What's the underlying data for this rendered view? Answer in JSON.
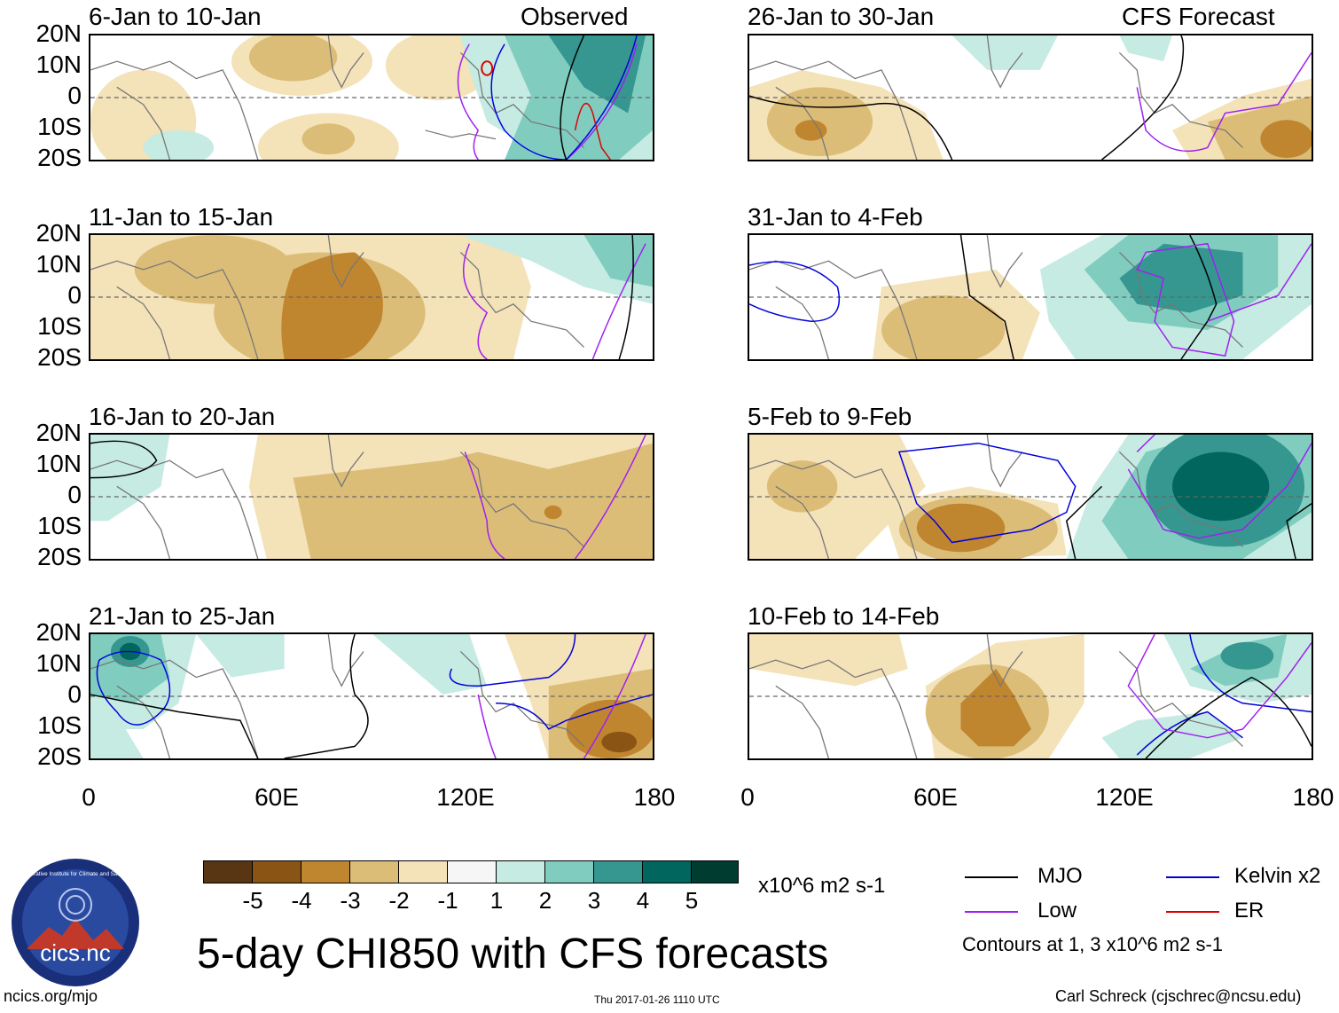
{
  "panels": [
    {
      "period": "6-Jan to 10-Jan",
      "source": "Observed"
    },
    {
      "period": "11-Jan to 15-Jan",
      "source": ""
    },
    {
      "period": "16-Jan to 20-Jan",
      "source": ""
    },
    {
      "period": "21-Jan to 25-Jan",
      "source": ""
    },
    {
      "period": "26-Jan to 30-Jan",
      "source": "CFS Forecast"
    },
    {
      "period": "31-Jan to 4-Feb",
      "source": ""
    },
    {
      "period": "5-Feb to 9-Feb",
      "source": ""
    },
    {
      "period": "10-Feb to 14-Feb",
      "source": ""
    }
  ],
  "lat_labels": [
    "20N",
    "10N",
    "0",
    "10S",
    "20S"
  ],
  "lon_labels": [
    "0",
    "60E",
    "120E",
    "180"
  ],
  "colorbar": {
    "colors": [
      "#583613",
      "#8a5415",
      "#c0852f",
      "#dcbd78",
      "#f4e2b8",
      "#f6f6f6",
      "#c6ebe3",
      "#80cdc0",
      "#35978f",
      "#01665e",
      "#003c30"
    ],
    "labels": [
      "-5",
      "-4",
      "-3",
      "-2",
      "-1",
      "1",
      "2",
      "3",
      "4",
      "5"
    ],
    "units": "x10^6 m2 s-1"
  },
  "legend": {
    "items": [
      {
        "label": "MJO",
        "color": "#000000"
      },
      {
        "label": "Kelvin x2",
        "color": "#0000dd"
      },
      {
        "label": "Low",
        "color": "#a020f0"
      },
      {
        "label": "ER",
        "color": "#dd0000"
      }
    ],
    "note": "Contours at 1, 3 x10^6 m2 s-1"
  },
  "title": "5-day CHI850 with CFS forecasts",
  "logo_text": "cics.nc",
  "logo_ring_text": "Cooperative Institute for Climate and Satellites",
  "footer": {
    "url": "ncics.org/mjo",
    "timestamp": "Thu 2017-01-26 1110 UTC",
    "author": "Carl Schreck (cjschrec@ncsu.edu)"
  }
}
